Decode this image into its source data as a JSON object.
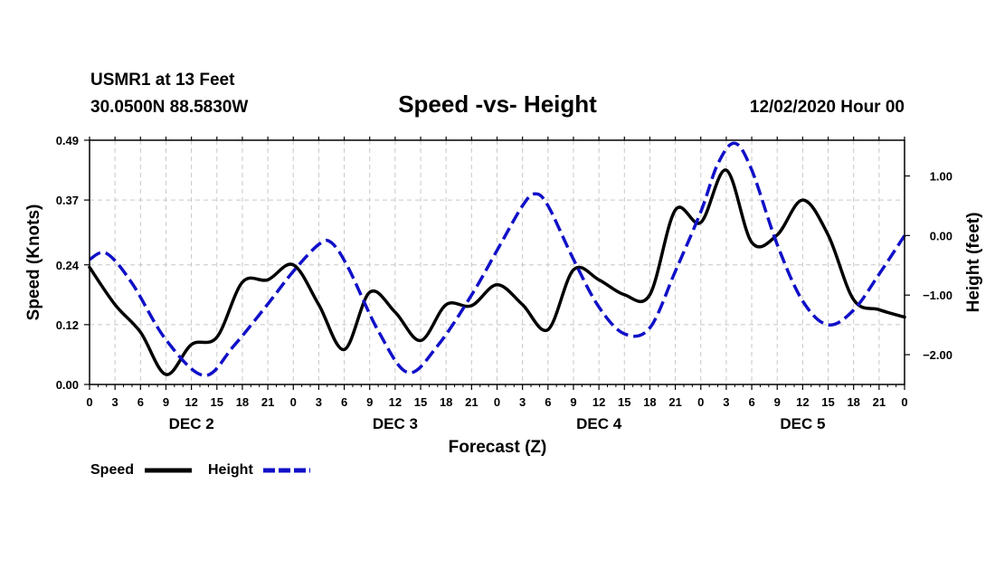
{
  "header": {
    "station": "USMR1 at 13 Feet",
    "coords": "30.0500N 88.5830W",
    "datetime": "12/02/2020 Hour 00"
  },
  "legend": {
    "speed_label": "Speed",
    "height_label": "Height"
  },
  "chart_data": {
    "type": "line",
    "title": "Speed -vs- Height",
    "xlabel": "Forecast (Z)",
    "ylabel_left": "Speed (Knots)",
    "ylabel_right": "Height (feet)",
    "x_range_hours": [
      0,
      96
    ],
    "x_ticks": [
      {
        "h": 0,
        "label": "0"
      },
      {
        "h": 3,
        "label": "3"
      },
      {
        "h": 6,
        "label": "6"
      },
      {
        "h": 9,
        "label": "9"
      },
      {
        "h": 12,
        "label": "12"
      },
      {
        "h": 15,
        "label": "15"
      },
      {
        "h": 18,
        "label": "18"
      },
      {
        "h": 21,
        "label": "21"
      },
      {
        "h": 24,
        "label": "0"
      },
      {
        "h": 27,
        "label": "3"
      },
      {
        "h": 30,
        "label": "6"
      },
      {
        "h": 33,
        "label": "9"
      },
      {
        "h": 36,
        "label": "12"
      },
      {
        "h": 39,
        "label": "15"
      },
      {
        "h": 42,
        "label": "18"
      },
      {
        "h": 45,
        "label": "21"
      },
      {
        "h": 48,
        "label": "0"
      },
      {
        "h": 51,
        "label": "3"
      },
      {
        "h": 54,
        "label": "6"
      },
      {
        "h": 57,
        "label": "9"
      },
      {
        "h": 60,
        "label": "12"
      },
      {
        "h": 63,
        "label": "15"
      },
      {
        "h": 66,
        "label": "18"
      },
      {
        "h": 69,
        "label": "21"
      },
      {
        "h": 72,
        "label": "0"
      },
      {
        "h": 75,
        "label": "3"
      },
      {
        "h": 78,
        "label": "6"
      },
      {
        "h": 81,
        "label": "9"
      },
      {
        "h": 84,
        "label": "12"
      },
      {
        "h": 87,
        "label": "15"
      },
      {
        "h": 90,
        "label": "18"
      },
      {
        "h": 93,
        "label": "21"
      },
      {
        "h": 96,
        "label": "0"
      }
    ],
    "day_labels": [
      {
        "h": 12,
        "label": "DEC 2"
      },
      {
        "h": 36,
        "label": "DEC 3"
      },
      {
        "h": 60,
        "label": "DEC 4"
      },
      {
        "h": 84,
        "label": "DEC 5"
      }
    ],
    "left_axis": {
      "range": [
        0.0,
        0.49
      ],
      "ticks": [
        0.0,
        0.12,
        0.24,
        0.37,
        0.49
      ],
      "tick_labels": [
        "0.00",
        "0.12",
        "0.24",
        "0.37",
        "0.49"
      ]
    },
    "right_axis": {
      "range": [
        -2.5,
        1.6
      ],
      "ticks": [
        1.0,
        0.0,
        -1.0,
        -2.0
      ],
      "tick_labels": [
        "1.00",
        "0.00",
        "−1.00",
        "−2.00"
      ]
    },
    "series": [
      {
        "name": "Speed",
        "axis": "left",
        "color": "#000000",
        "style": "solid",
        "points": [
          [
            0,
            0.235
          ],
          [
            3,
            0.16
          ],
          [
            6,
            0.105
          ],
          [
            9,
            0.02
          ],
          [
            12,
            0.08
          ],
          [
            15,
            0.095
          ],
          [
            18,
            0.205
          ],
          [
            21,
            0.21
          ],
          [
            24,
            0.24
          ],
          [
            27,
            0.16
          ],
          [
            30,
            0.07
          ],
          [
            33,
            0.185
          ],
          [
            36,
            0.145
          ],
          [
            39,
            0.088
          ],
          [
            42,
            0.16
          ],
          [
            45,
            0.158
          ],
          [
            48,
            0.2
          ],
          [
            51,
            0.16
          ],
          [
            54,
            0.11
          ],
          [
            57,
            0.23
          ],
          [
            60,
            0.21
          ],
          [
            63,
            0.18
          ],
          [
            66,
            0.18
          ],
          [
            69,
            0.35
          ],
          [
            72,
            0.325
          ],
          [
            75,
            0.43
          ],
          [
            78,
            0.285
          ],
          [
            81,
            0.3
          ],
          [
            84,
            0.37
          ],
          [
            87,
            0.3
          ],
          [
            90,
            0.17
          ],
          [
            93,
            0.15
          ],
          [
            96,
            0.135
          ]
        ]
      },
      {
        "name": "Height",
        "axis": "right",
        "color": "#1010c8",
        "style": "dashed",
        "points": [
          [
            0,
            -0.4
          ],
          [
            2,
            -0.3
          ],
          [
            5,
            -0.8
          ],
          [
            9,
            -1.75
          ],
          [
            13.5,
            -2.35
          ],
          [
            17,
            -1.85
          ],
          [
            21,
            -1.15
          ],
          [
            24,
            -0.6
          ],
          [
            27,
            -0.15
          ],
          [
            28.5,
            -0.12
          ],
          [
            30.5,
            -0.55
          ],
          [
            34,
            -1.6
          ],
          [
            37.5,
            -2.3
          ],
          [
            41,
            -1.85
          ],
          [
            45,
            -1.0
          ],
          [
            48,
            -0.25
          ],
          [
            51,
            0.5
          ],
          [
            52.5,
            0.7
          ],
          [
            54,
            0.5
          ],
          [
            57,
            -0.4
          ],
          [
            60,
            -1.2
          ],
          [
            63,
            -1.65
          ],
          [
            66,
            -1.55
          ],
          [
            69,
            -0.6
          ],
          [
            72,
            0.4
          ],
          [
            74,
            1.2
          ],
          [
            76,
            1.55
          ],
          [
            78,
            1.1
          ],
          [
            81,
            -0.15
          ],
          [
            84,
            -1.1
          ],
          [
            87,
            -1.5
          ],
          [
            90,
            -1.25
          ],
          [
            93,
            -0.65
          ],
          [
            96,
            0.0
          ]
        ]
      }
    ]
  }
}
